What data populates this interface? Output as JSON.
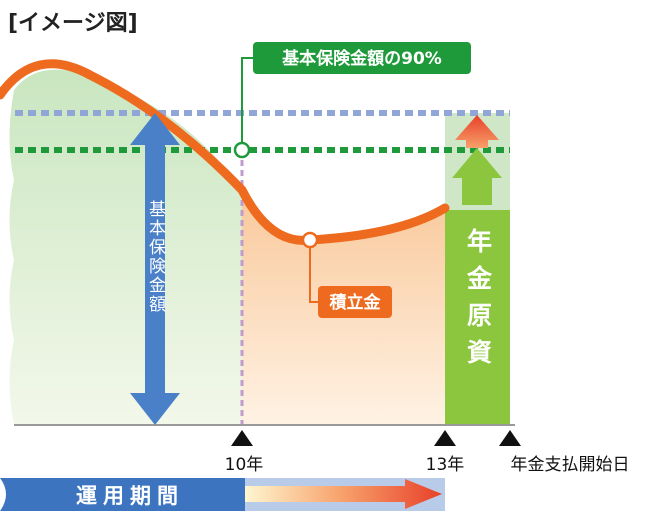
{
  "title": "[イメージ図]",
  "labels": {
    "ninety_percent": "基本保険金額の90%",
    "basic_amount": "基本保険金額",
    "reserve": "積立金",
    "annuity_fund": "年金原資"
  },
  "timeline": {
    "year10": "10年",
    "year13": "13年",
    "start": "年金支払開始日",
    "period": "運用期間"
  }
}
